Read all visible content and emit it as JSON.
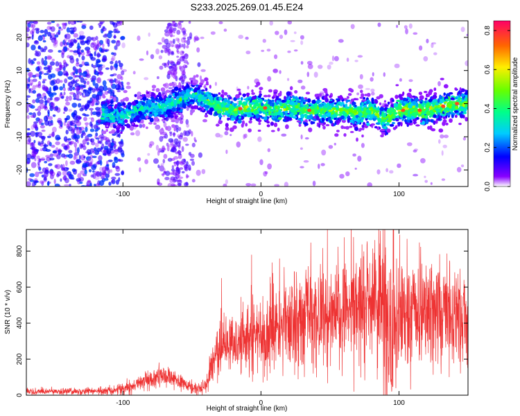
{
  "title": "S233.2025.269.01.45.E24",
  "colors": {
    "snr_line": "#ee3333",
    "axis": "#000000",
    "background": "#ffffff"
  },
  "chart_data": [
    {
      "type": "heatmap",
      "xlabel": "Height of straight line (km)",
      "ylabel": "Frequency (Hz)",
      "xlim": [
        -170,
        150
      ],
      "ylim": [
        -25,
        25
      ],
      "x_ticks": [
        -100,
        0,
        100
      ],
      "y_ticks": [
        -20,
        -10,
        0,
        10,
        20
      ],
      "ridge": {
        "x": [
          -115,
          -100,
          -90,
          -80,
          -70,
          -60,
          -50,
          -40,
          -30,
          -20,
          -10,
          0,
          10,
          20,
          30,
          40,
          50,
          60,
          70,
          80,
          90,
          95,
          100,
          110,
          120,
          130,
          140,
          150
        ],
        "y": [
          -3,
          -4,
          -2,
          -1,
          -1,
          1,
          3,
          1,
          -1,
          -2,
          -1,
          -1,
          -2,
          -1,
          -2,
          -2,
          -2,
          -2,
          -3,
          -2,
          -5,
          -3,
          -2,
          -2,
          -2,
          -1,
          0,
          0
        ]
      },
      "colorbar": {
        "label": "Normalized spectral amplitude",
        "range": [
          0.0,
          0.85
        ],
        "ticks": [
          0.0,
          0.2,
          0.4,
          0.6,
          0.8
        ],
        "tick_labels": [
          "0.0",
          "0.2",
          "0.4",
          "0.6",
          "0.8"
        ],
        "colormap": "rainbow"
      }
    },
    {
      "type": "line",
      "xlabel": "Height of straight line (km)",
      "ylabel": "SNR (10 * v/v)",
      "xlim": [
        -170,
        150
      ],
      "ylim": [
        0,
        920
      ],
      "x_ticks": [
        -100,
        0,
        100
      ],
      "y_ticks": [
        0,
        200,
        400,
        600,
        800
      ],
      "envelope": {
        "x": [
          -170,
          -130,
          -105,
          -95,
          -85,
          -75,
          -65,
          -55,
          -45,
          -40,
          -35,
          -30,
          -20,
          -10,
          0,
          10,
          20,
          30,
          40,
          50,
          60,
          70,
          80,
          90,
          95,
          100,
          110,
          120,
          130,
          140,
          150
        ],
        "y": [
          20,
          22,
          28,
          45,
          80,
          100,
          95,
          60,
          35,
          60,
          180,
          250,
          280,
          320,
          340,
          370,
          410,
          430,
          440,
          460,
          460,
          480,
          500,
          470,
          360,
          470,
          460,
          460,
          470,
          455,
          460
        ]
      }
    }
  ]
}
